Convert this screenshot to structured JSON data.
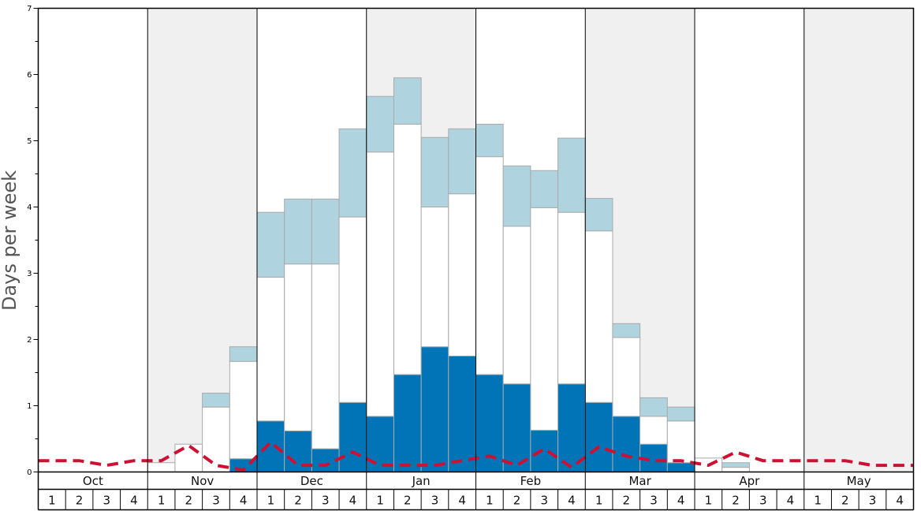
{
  "chart_data": {
    "type": "bar",
    "stacked": true,
    "ylabel": "Days per week",
    "ylim": [
      0,
      7
    ],
    "y_ticks": [
      "0",
      "1",
      "2",
      "3",
      "4",
      "5",
      "6",
      "7"
    ],
    "months": [
      "Oct",
      "Nov",
      "Dec",
      "Jan",
      "Feb",
      "Mar",
      "Apr",
      "May"
    ],
    "weeks": [
      "1",
      "2",
      "3",
      "4"
    ],
    "shaded_months": [
      "Nov",
      "Jan",
      "Mar",
      "May"
    ],
    "colors": {
      "bottom": "#0074b7",
      "middle": "#ffffff",
      "top": "#afd4e0",
      "bar_border": "#aaaaaa",
      "line": "#cc1133",
      "shade": "#f0f0f0"
    },
    "series": [
      {
        "values": [
          0,
          0,
          0,
          0,
          0,
          0,
          0,
          0.2,
          0.77,
          0.62,
          0.35,
          1.05,
          0.84,
          1.47,
          1.89,
          1.75,
          1.47,
          1.33,
          0.63,
          1.33,
          1.05,
          0.84,
          0.42,
          0.14,
          0,
          0,
          0,
          0,
          0,
          0,
          0,
          0
        ]
      },
      {
        "values": [
          0,
          0,
          0,
          0,
          0.14,
          0.42,
          0.98,
          1.47,
          2.17,
          2.52,
          2.79,
          2.8,
          3.99,
          3.78,
          2.11,
          2.45,
          3.29,
          2.38,
          3.36,
          2.59,
          2.59,
          1.19,
          0.42,
          0.63,
          0.21,
          0.07,
          0,
          0,
          0,
          0,
          0,
          0
        ]
      },
      {
        "values": [
          0,
          0,
          0,
          0,
          0,
          0,
          0.21,
          0.22,
          0.98,
          0.98,
          0.98,
          1.33,
          0.84,
          0.7,
          1.05,
          0.98,
          0.49,
          0.91,
          0.56,
          1.12,
          0.49,
          0.21,
          0.28,
          0.21,
          0,
          0.07,
          0,
          0,
          0,
          0,
          0,
          0
        ]
      }
    ],
    "line": {
      "values": [
        0.17,
        0.17,
        0.1,
        0.17,
        0.17,
        0.4,
        0.1,
        0.03,
        0.45,
        0.1,
        0.1,
        0.3,
        0.1,
        0.1,
        0.1,
        0.17,
        0.24,
        0.1,
        0.35,
        0.07,
        0.38,
        0.24,
        0.17,
        0.17,
        0.1,
        0.3,
        0.17,
        0.17,
        0.17,
        0.17,
        0.1,
        0.1
      ]
    }
  }
}
